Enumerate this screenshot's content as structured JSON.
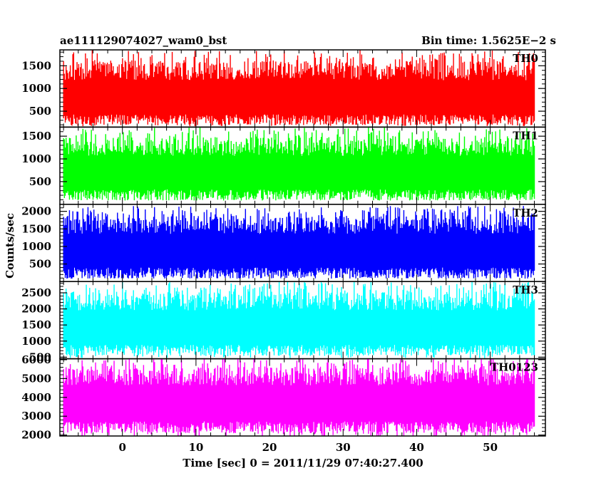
{
  "header": {
    "left_title": "ae111129074027_wam0_bst",
    "right_title": "Bin time: 1.5625E−2 s"
  },
  "chart_data": {
    "type": "line",
    "xlabel": "Time [sec] 0 = 2011/11/29 07:40:27.400",
    "ylabel": "Counts/sec",
    "xlim": [
      -8.5,
      57.5
    ],
    "x_range_data": [
      -8.0,
      56.0
    ],
    "x_ticks": [
      0,
      10,
      20,
      30,
      40,
      50
    ],
    "bin_time_s": 0.015625,
    "panels": [
      {
        "name": "TH0",
        "color": "#ff0000",
        "ylim": [
          150,
          1850
        ],
        "yticks": [
          500,
          1000,
          1500
        ],
        "approx_min": 200,
        "approx_max": 1800,
        "mean": 850
      },
      {
        "name": "TH1",
        "color": "#00ff00",
        "ylim": [
          0,
          1700
        ],
        "yticks": [
          500,
          1000,
          1500
        ],
        "approx_min": 100,
        "approx_max": 1650,
        "mean": 750
      },
      {
        "name": "TH2",
        "color": "#0000ff",
        "ylim": [
          0,
          2200
        ],
        "yticks": [
          500,
          1000,
          1500,
          2000
        ],
        "approx_min": 100,
        "approx_max": 2100,
        "mean": 950
      },
      {
        "name": "TH3",
        "color": "#00ffff",
        "ylim": [
          450,
          2850
        ],
        "yticks": [
          500,
          1000,
          1500,
          2000,
          2500
        ],
        "approx_min": 550,
        "approx_max": 2800,
        "mean": 1500
      },
      {
        "name": "TH0123",
        "color": "#ff00ff",
        "ylim": [
          1950,
          6050
        ],
        "yticks": [
          2000,
          3000,
          4000,
          5000,
          6000
        ],
        "approx_min": 2100,
        "approx_max": 6000,
        "mean": 3900
      }
    ]
  }
}
